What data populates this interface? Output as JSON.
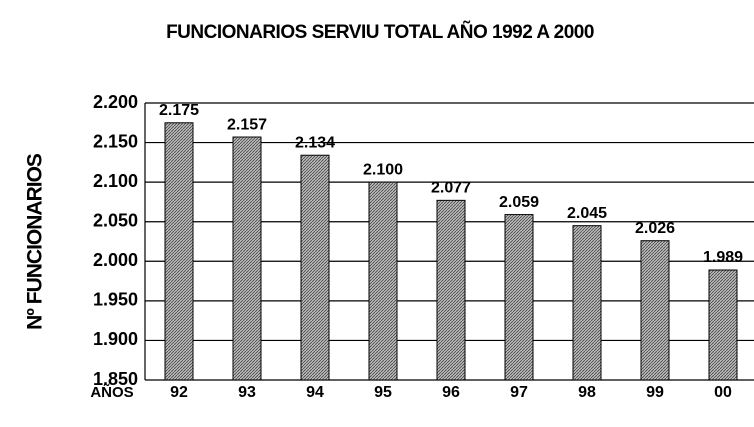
{
  "chart_data": {
    "type": "bar",
    "title": "FUNCIONARIOS SERVIU TOTAL AÑO 1992 A 2000",
    "xlabel": "AÑOS",
    "ylabel": "Nº FUNCIONARIOS",
    "categories": [
      "92",
      "93",
      "94",
      "95",
      "96",
      "97",
      "98",
      "99",
      "00"
    ],
    "values": [
      2175,
      2157,
      2134,
      2100,
      2077,
      2059,
      2045,
      2026,
      1989
    ],
    "value_labels": [
      "2.175",
      "2.157",
      "2.134",
      "2.100",
      "2.077",
      "2.059",
      "2.045",
      "2.026",
      "1.989"
    ],
    "color": "#8c8c8c",
    "ylim": [
      1850,
      2200
    ],
    "yticks": [
      {
        "value": 1850,
        "label": "1.850"
      },
      {
        "value": 1900,
        "label": "1.900"
      },
      {
        "value": 1950,
        "label": "1.950"
      },
      {
        "value": 2000,
        "label": "2.000"
      },
      {
        "value": 2050,
        "label": "2.050"
      },
      {
        "value": 2100,
        "label": "2.100"
      },
      {
        "value": 2150,
        "label": "2.150"
      },
      {
        "value": 2200,
        "label": "2.200"
      }
    ],
    "grid": true
  }
}
